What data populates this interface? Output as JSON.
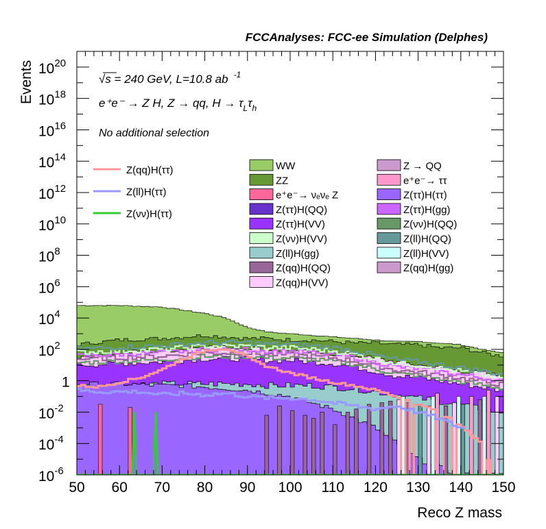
{
  "header": {
    "title": "FCCAnalyses: FCC-ee Simulation (Delphes)",
    "energy_line": "√s = 240 GeV, L=10.8 ab",
    "lumi_exp": "-1",
    "process_line": "e⁺e⁻ → Z H, Z → qq, H → τ",
    "tau_sub1": "L",
    "tau_sym": "τ",
    "tau_sub2": "h",
    "selection": "No additional selection"
  },
  "colors": {
    "WW": "#99cc66",
    "ZZ": "#669933",
    "nunuZ": "#ff6699",
    "ZttHQQ": "#6633cc",
    "ZttHVV": "#9933ff",
    "ZnnHVV": "#ccffcc",
    "ZllHgg": "#99cccc",
    "ZqqHQQ": "#996699",
    "ZqqHVV": "#ffccff",
    "ZQQ": "#cc99cc",
    "tautau": "#ff99cc",
    "ZttHtt": "#9966ff",
    "ZttHgg": "#cc66ff",
    "ZnnHQQ": "#669966",
    "ZllHQQ": "#669999",
    "ZllHVV": "#ccffff",
    "ZqqHgg": "#cc99cc",
    "sig_qq": "#ff9999",
    "sig_ll": "#9999ff",
    "sig_nn": "#33cc33"
  },
  "chart_data": {
    "type": "bar",
    "title": "FCCAnalyses: FCC-ee Simulation (Delphes)",
    "xlabel": "Reco Z mass",
    "ylabel": "Events",
    "xlim": [
      50,
      150
    ],
    "ylim": [
      1e-06,
      1e+21
    ],
    "log_y": true,
    "xticks": [
      "50",
      "60",
      "70",
      "80",
      "90",
      "100",
      "110",
      "120",
      "130",
      "140",
      "150"
    ],
    "yticks": [
      {
        "base": "10",
        "exp": "-6"
      },
      {
        "base": "10",
        "exp": "-4"
      },
      {
        "base": "10",
        "exp": "-2"
      },
      {
        "base": "1",
        "exp": ""
      },
      {
        "base": "10",
        "exp": "2"
      },
      {
        "base": "10",
        "exp": "4"
      },
      {
        "base": "10",
        "exp": "6"
      },
      {
        "base": "10",
        "exp": "8"
      },
      {
        "base": "10",
        "exp": "10"
      },
      {
        "base": "10",
        "exp": "12"
      },
      {
        "base": "10",
        "exp": "14"
      },
      {
        "base": "10",
        "exp": "16"
      },
      {
        "base": "10",
        "exp": "18"
      },
      {
        "base": "10",
        "exp": "20"
      }
    ],
    "legend_placement": "top",
    "stack_envelope": {
      "x": [
        50,
        60,
        70,
        75,
        80,
        85,
        90,
        95,
        100,
        105,
        110,
        115,
        120,
        125,
        130,
        135,
        140,
        145,
        149
      ],
      "WW_top_log10": [
        4.8,
        4.8,
        4.7,
        4.5,
        4.3,
        4.0,
        3.4,
        3.1,
        3.0,
        2.9,
        2.8,
        2.7,
        2.6,
        2.5,
        2.5,
        2.4,
        2.3,
        2.0,
        1.8
      ],
      "ZZ_top_log10": [
        2.3,
        2.6,
        2.7,
        2.8,
        2.9,
        2.8,
        2.7,
        2.7,
        2.6,
        2.6,
        2.5,
        2.4,
        2.4,
        2.3,
        2.3,
        2.1,
        2.1,
        1.8,
        1.6
      ],
      "pink_top_log10": [
        1.5,
        1.8,
        1.9,
        2.0,
        2.2,
        2.1,
        2.1,
        2.0,
        1.9,
        1.8,
        1.7,
        1.6,
        1.4,
        1.2,
        1.0,
        0.8,
        0.6,
        0.5,
        0.3
      ],
      "purple_top_log10": [
        1.0,
        1.1,
        1.2,
        1.3,
        1.4,
        1.4,
        1.4,
        1.3,
        1.3,
        1.2,
        1.1,
        0.9,
        0.6,
        0.3,
        0.2,
        0.0,
        -0.2,
        -0.4,
        -0.6
      ],
      "teal_top_log10": [
        -0.3,
        -0.3,
        -0.2,
        -0.2,
        -0.2,
        -0.2,
        -0.2,
        -0.3,
        -0.3,
        -0.3,
        -0.4,
        -0.5,
        -0.7,
        -0.9,
        -1.1,
        -1.3,
        -1.5,
        -1.8,
        -2.0
      ],
      "base_purple_top_log10": [
        -0.2,
        -0.2,
        -0.3,
        -0.3,
        -0.4,
        -0.5,
        -0.6,
        -0.8,
        -1.0,
        -1.4,
        -1.8,
        -2.4,
        -3.0,
        -4.0,
        -5.0,
        -5.5,
        -6.0,
        -6.0,
        -6.0
      ]
    },
    "series": [
      {
        "name": "Z(qq)H(ττ)",
        "x": [
          50,
          55,
          60,
          65,
          70,
          72,
          75,
          78,
          80,
          82,
          84,
          85,
          86,
          88,
          90,
          92,
          95,
          100,
          105,
          110,
          115,
          120,
          125,
          130,
          135,
          140,
          145,
          148
        ],
        "log10y": [
          -0.3,
          -0.4,
          -0.1,
          0.2,
          0.7,
          1.0,
          1.4,
          1.7,
          1.9,
          2.0,
          2.05,
          2.05,
          2.0,
          1.8,
          1.5,
          1.2,
          0.9,
          0.5,
          0.2,
          -0.1,
          -0.3,
          -0.6,
          -1.0,
          -1.5,
          -2.0,
          -2.8,
          -4.0,
          -6.0
        ]
      },
      {
        "name": "Z(ll)H(ττ)",
        "x": [
          50,
          55,
          60,
          65,
          70,
          75,
          80,
          85,
          90,
          95,
          100,
          105,
          110,
          115,
          120,
          125,
          130,
          135,
          140
        ],
        "log10y": [
          -0.6,
          -0.7,
          -0.7,
          -0.7,
          -0.9,
          -0.8,
          -0.9,
          -0.8,
          -1.0,
          -1.1,
          -1.1,
          -1.2,
          -1.4,
          -1.6,
          -1.8,
          -1.6,
          -2.0,
          -2.4,
          -3.0
        ]
      },
      {
        "name": "Z(νν)H(ττ)",
        "x": [
          50,
          63,
          63.5,
          64,
          68,
          68.5,
          69,
          150
        ],
        "log10y": [
          -6,
          -6,
          -2,
          -6,
          -6,
          -2,
          -6,
          -6
        ]
      }
    ]
  },
  "legend_signal": [
    "Z(qq)H(ττ)",
    "Z(ll)H(ττ)",
    "Z(νν)H(ττ)"
  ],
  "legend_left": [
    {
      "key": "WW",
      "label": "WW"
    },
    {
      "key": "ZZ",
      "label": "ZZ"
    },
    {
      "key": "nunuZ",
      "label": "e⁺e⁻→ νₑνₑ Z"
    },
    {
      "key": "ZttHQQ",
      "label": "Z(ττ)H(QQ)"
    },
    {
      "key": "ZttHVV",
      "label": "Z(ττ)H(VV)"
    },
    {
      "key": "ZnnHVV",
      "label": "Z(νν)H(VV)"
    },
    {
      "key": "ZllHgg",
      "label": "Z(ll)H(gg)"
    },
    {
      "key": "ZqqHQQ",
      "label": "Z(qq)H(QQ)"
    },
    {
      "key": "ZqqHVV",
      "label": "Z(qq)H(VV)"
    }
  ],
  "legend_right": [
    {
      "key": "ZQQ",
      "label": "Z → QQ"
    },
    {
      "key": "tautau",
      "label": "e⁺e⁻→ ττ"
    },
    {
      "key": "ZttHtt",
      "label": "Z(ττ)H(ττ)"
    },
    {
      "key": "ZttHgg",
      "label": "Z(ττ)H(gg)"
    },
    {
      "key": "ZnnHQQ",
      "label": "Z(νν)H(QQ)"
    },
    {
      "key": "ZllHQQ",
      "label": "Z(ll)H(QQ)"
    },
    {
      "key": "ZllHVV",
      "label": "Z(ll)H(VV)"
    },
    {
      "key": "ZqqHgg",
      "label": "Z(qq)H(gg)"
    }
  ]
}
